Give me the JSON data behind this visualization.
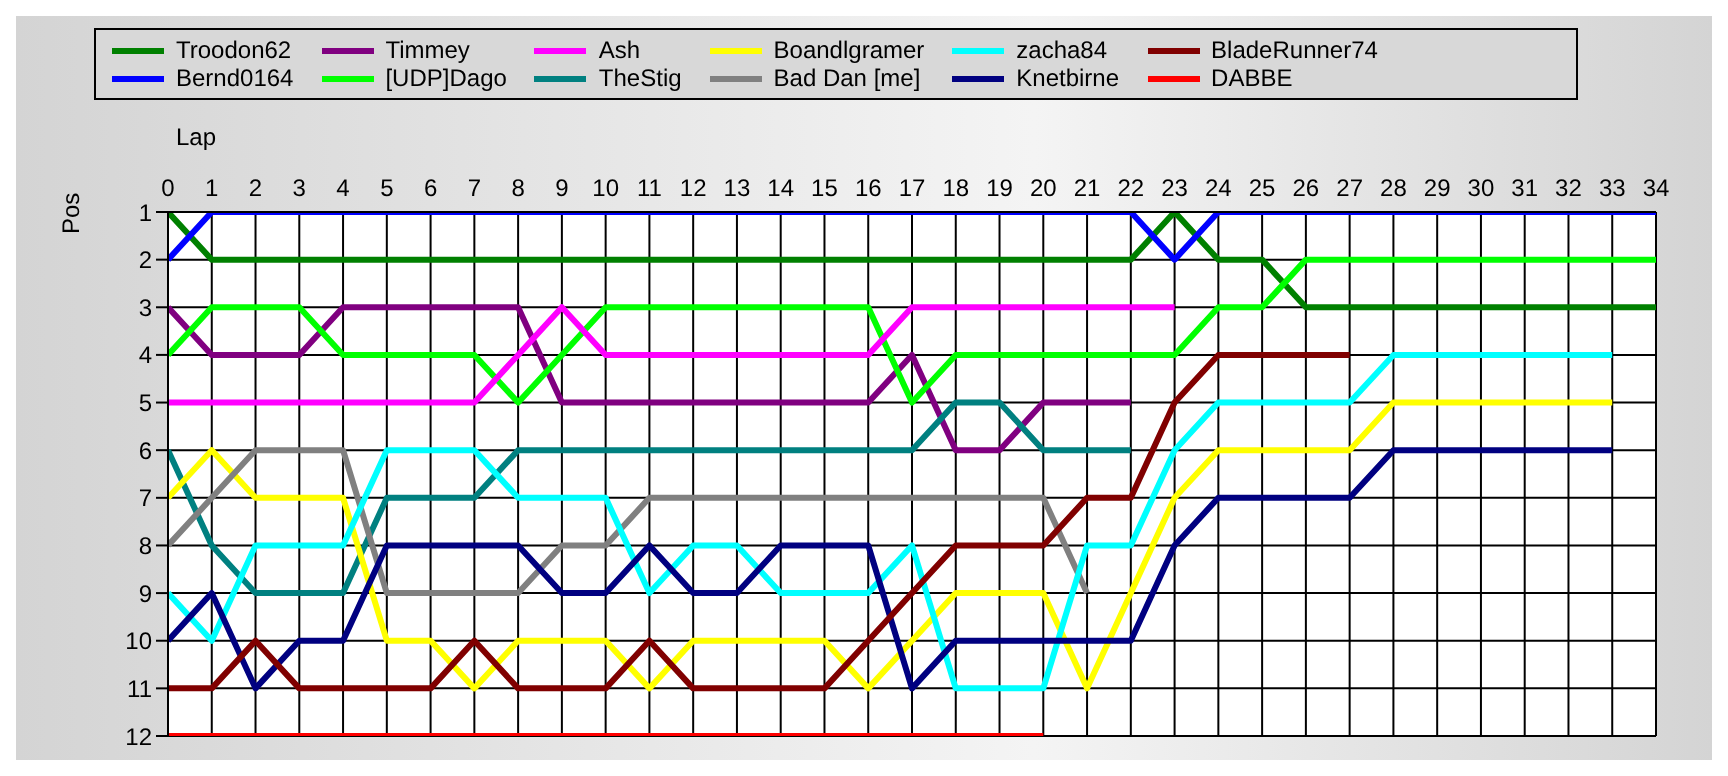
{
  "chart_data": {
    "type": "line",
    "xlabel": "Lap",
    "ylabel": "Pos",
    "x": [
      0,
      1,
      2,
      3,
      4,
      5,
      6,
      7,
      8,
      9,
      10,
      11,
      12,
      13,
      14,
      15,
      16,
      17,
      18,
      19,
      20,
      21,
      22,
      23,
      24,
      25,
      26,
      27,
      28,
      29,
      30,
      31,
      32,
      33,
      34
    ],
    "xlim": [
      0,
      34
    ],
    "xticks": [
      0,
      1,
      2,
      3,
      4,
      5,
      6,
      7,
      8,
      9,
      10,
      11,
      12,
      13,
      14,
      15,
      16,
      17,
      18,
      19,
      20,
      21,
      22,
      23,
      24,
      25,
      26,
      27,
      28,
      29,
      30,
      31,
      32,
      33,
      34
    ],
    "ylim": [
      12,
      1
    ],
    "yticks": [
      1,
      2,
      3,
      4,
      5,
      6,
      7,
      8,
      9,
      10,
      11,
      12
    ],
    "grid": true,
    "legend": "top",
    "marker": "none",
    "line_style": "solid",
    "series": [
      {
        "name": "Troodon62",
        "color": "#008000",
        "values": [
          1,
          2,
          2,
          2,
          2,
          2,
          2,
          2,
          2,
          2,
          2,
          2,
          2,
          2,
          2,
          2,
          2,
          2,
          2,
          2,
          2,
          2,
          2,
          1,
          2,
          2,
          3,
          3,
          3,
          3,
          3,
          3,
          3,
          3,
          3
        ]
      },
      {
        "name": "Bernd0164",
        "color": "#0000ff",
        "values": [
          2,
          1,
          1,
          1,
          1,
          1,
          1,
          1,
          1,
          1,
          1,
          1,
          1,
          1,
          1,
          1,
          1,
          1,
          1,
          1,
          1,
          1,
          1,
          2,
          1,
          1,
          1,
          1,
          1,
          1,
          1,
          1,
          1,
          1,
          1
        ]
      },
      {
        "name": "Timmey",
        "color": "#800080",
        "values": [
          3,
          4,
          4,
          4,
          3,
          3,
          3,
          3,
          3,
          5,
          5,
          5,
          5,
          5,
          5,
          5,
          5,
          4,
          6,
          6,
          5,
          5,
          5,
          null,
          null,
          null,
          null,
          null,
          null,
          null,
          null,
          null,
          null,
          null,
          null
        ]
      },
      {
        "name": "[UDP]Dago",
        "color": "#00ff00",
        "values": [
          4,
          3,
          3,
          3,
          4,
          4,
          4,
          4,
          5,
          4,
          3,
          3,
          3,
          3,
          3,
          3,
          3,
          5,
          4,
          4,
          4,
          4,
          4,
          4,
          3,
          3,
          2,
          2,
          2,
          2,
          2,
          2,
          2,
          2,
          2
        ]
      },
      {
        "name": "Ash",
        "color": "#ff00ff",
        "values": [
          5,
          5,
          5,
          5,
          5,
          5,
          5,
          5,
          4,
          3,
          4,
          4,
          4,
          4,
          4,
          4,
          4,
          3,
          3,
          3,
          3,
          3,
          3,
          3,
          null,
          null,
          null,
          null,
          null,
          null,
          null,
          null,
          null,
          null,
          null
        ]
      },
      {
        "name": "TheStig",
        "color": "#008080",
        "values": [
          6,
          8,
          9,
          9,
          9,
          7,
          7,
          7,
          6,
          6,
          6,
          6,
          6,
          6,
          6,
          6,
          6,
          6,
          5,
          5,
          6,
          6,
          6,
          null,
          null,
          null,
          null,
          null,
          null,
          null,
          null,
          null,
          null,
          null,
          null
        ]
      },
      {
        "name": "Boandlgramer",
        "color": "#ffff00",
        "values": [
          7,
          6,
          7,
          7,
          7,
          10,
          10,
          11,
          10,
          10,
          10,
          11,
          10,
          10,
          10,
          10,
          11,
          10,
          9,
          9,
          9,
          11,
          9,
          7,
          6,
          6,
          6,
          6,
          5,
          5,
          5,
          5,
          5,
          5,
          null
        ]
      },
      {
        "name": "Bad Dan [me]",
        "color": "#808080",
        "values": [
          8,
          7,
          6,
          6,
          6,
          9,
          9,
          9,
          9,
          8,
          8,
          7,
          7,
          7,
          7,
          7,
          7,
          7,
          7,
          7,
          7,
          9,
          null,
          null,
          null,
          null,
          null,
          null,
          null,
          null,
          null,
          null,
          null,
          null,
          null
        ]
      },
      {
        "name": "zacha84",
        "color": "#00ffff",
        "values": [
          9,
          10,
          8,
          8,
          8,
          6,
          6,
          6,
          7,
          7,
          7,
          9,
          8,
          8,
          9,
          9,
          9,
          8,
          11,
          11,
          11,
          8,
          8,
          6,
          5,
          5,
          5,
          5,
          4,
          4,
          4,
          4,
          4,
          4,
          null
        ]
      },
      {
        "name": "Knetbirne",
        "color": "#000080",
        "values": [
          10,
          9,
          11,
          10,
          10,
          8,
          8,
          8,
          8,
          9,
          9,
          8,
          9,
          9,
          8,
          8,
          8,
          11,
          10,
          10,
          10,
          10,
          10,
          8,
          7,
          7,
          7,
          7,
          6,
          6,
          6,
          6,
          6,
          6,
          null
        ]
      },
      {
        "name": "BladeRunner74",
        "color": "#800000",
        "values": [
          11,
          11,
          10,
          11,
          11,
          11,
          11,
          10,
          11,
          11,
          11,
          10,
          11,
          11,
          11,
          11,
          10,
          9,
          8,
          8,
          8,
          7,
          7,
          5,
          4,
          4,
          4,
          4,
          null,
          null,
          null,
          null,
          null,
          null,
          null
        ]
      },
      {
        "name": "DABBE",
        "color": "#ff0000",
        "values": [
          12,
          12,
          12,
          12,
          12,
          12,
          12,
          12,
          12,
          12,
          12,
          12,
          12,
          12,
          12,
          12,
          12,
          12,
          12,
          12,
          12,
          null,
          null,
          null,
          null,
          null,
          null,
          null,
          null,
          null,
          null,
          null,
          null,
          null,
          null
        ]
      }
    ]
  }
}
